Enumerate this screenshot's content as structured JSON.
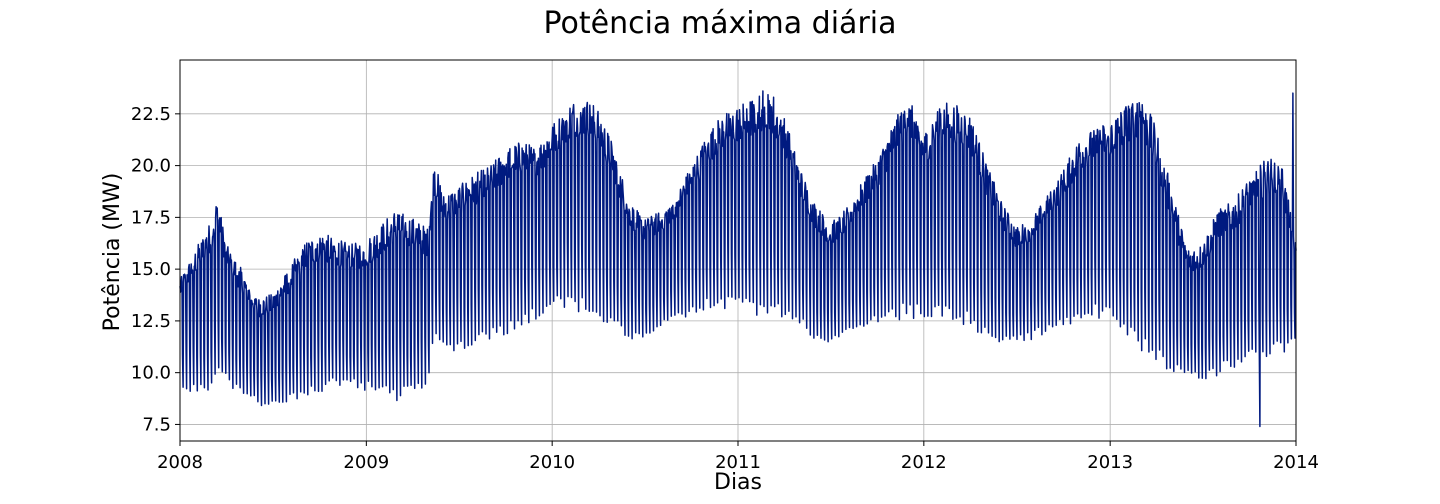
{
  "chart_data": {
    "type": "line",
    "title": "Potência máxima diária",
    "xlabel": "Dias",
    "ylabel": "Potência (MW)",
    "xlim": [
      "2008-01-01",
      "2014-01-01"
    ],
    "ylim": [
      6.7,
      25.1
    ],
    "x_ticks": [
      "2008",
      "2009",
      "2010",
      "2011",
      "2012",
      "2013",
      "2014"
    ],
    "y_ticks": [
      "7.5",
      "10.0",
      "12.5",
      "15.0",
      "17.5",
      "20.0",
      "22.5"
    ],
    "grid": true,
    "color": "#001a80",
    "series": [
      {
        "x": [
          "2008-01-01",
          "2008-02-01",
          "2008-03-01",
          "2008-03-15",
          "2008-04-01",
          "2008-05-01",
          "2008-06-01",
          "2008-07-01",
          "2008-08-01",
          "2008-09-01",
          "2008-10-01",
          "2008-11-01",
          "2008-12-01",
          "2009-01-01",
          "2009-02-01",
          "2009-03-01",
          "2009-04-01",
          "2009-05-01",
          "2009-05-15",
          "2009-06-01",
          "2009-07-01",
          "2009-08-01",
          "2009-09-01",
          "2009-10-01",
          "2009-11-01",
          "2009-12-01",
          "2010-01-01",
          "2010-02-01",
          "2010-03-01",
          "2010-04-01",
          "2010-05-01",
          "2010-06-01",
          "2010-07-01",
          "2010-08-01",
          "2010-09-01",
          "2010-10-01",
          "2010-11-01",
          "2010-12-01",
          "2011-01-01",
          "2011-02-01",
          "2011-03-01",
          "2011-04-01",
          "2011-05-01",
          "2011-06-01",
          "2011-07-01",
          "2011-08-01",
          "2011-09-01",
          "2011-10-01",
          "2011-11-01",
          "2011-12-01",
          "2012-01-01",
          "2012-02-01",
          "2012-03-01",
          "2012-04-01",
          "2012-05-01",
          "2012-06-01",
          "2012-07-01",
          "2012-08-01",
          "2012-09-01",
          "2012-10-01",
          "2012-11-01",
          "2012-12-01",
          "2013-01-01",
          "2013-02-01",
          "2013-03-01",
          "2013-04-01",
          "2013-05-01",
          "2013-06-01",
          "2013-07-01",
          "2013-08-01",
          "2013-09-01",
          "2013-10-01",
          "2013-11-01",
          "2013-12-01",
          "2014-01-01"
        ],
        "upper": [
          14.5,
          16.0,
          17.3,
          18.5,
          16.2,
          15.0,
          13.6,
          13.8,
          15.0,
          16.3,
          16.8,
          16.5,
          16.2,
          16.4,
          17.2,
          18.0,
          17.5,
          17.0,
          20.3,
          18.6,
          19.0,
          19.6,
          20.0,
          20.8,
          21.2,
          20.9,
          22.0,
          23.0,
          23.4,
          22.8,
          21.0,
          18.3,
          17.4,
          17.8,
          18.6,
          20.0,
          21.5,
          22.5,
          22.9,
          23.3,
          23.9,
          22.5,
          20.0,
          18.2,
          17.2,
          17.9,
          19.2,
          20.3,
          22.0,
          23.4,
          21.5,
          23.2,
          23.0,
          22.5,
          20.3,
          18.3,
          17.0,
          17.5,
          18.6,
          19.8,
          21.3,
          21.8,
          22.2,
          23.0,
          23.8,
          21.8,
          19.0,
          16.0,
          16.2,
          17.9,
          18.3,
          19.4,
          20.3,
          20.5,
          16.3
        ],
        "lower": [
          9.3,
          8.9,
          8.9,
          10.0,
          9.5,
          8.8,
          8.4,
          8.3,
          8.4,
          8.7,
          9.0,
          9.2,
          9.2,
          9.1,
          9.0,
          8.4,
          8.9,
          9.2,
          11.8,
          11.0,
          11.0,
          11.2,
          11.5,
          11.8,
          12.2,
          12.6,
          13.0,
          13.1,
          12.9,
          12.5,
          12.0,
          11.6,
          11.6,
          12.0,
          12.4,
          12.8,
          13.0,
          12.9,
          13.0,
          12.6,
          12.5,
          12.6,
          12.3,
          11.5,
          11.3,
          11.6,
          12.0,
          12.3,
          12.5,
          12.6,
          12.5,
          12.4,
          12.4,
          12.2,
          11.7,
          11.4,
          11.4,
          11.6,
          11.9,
          12.3,
          12.4,
          12.6,
          12.5,
          11.4,
          11.0,
          10.4,
          10.0,
          9.7,
          9.6,
          9.8,
          10.2,
          10.6,
          10.6,
          10.8,
          11.3
        ],
        "minimum": {
          "x": "2013-10-22",
          "y": 7.4
        },
        "maximum_end": {
          "x": "2013-12-26",
          "y": 23.5
        }
      }
    ]
  }
}
